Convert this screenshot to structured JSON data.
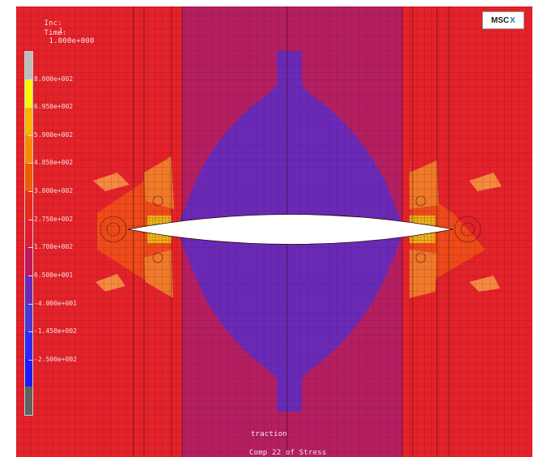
{
  "hud": {
    "inc_label": "Inc:",
    "inc_value": "1",
    "time_label": "Time:",
    "time_value": "1.000e+000"
  },
  "logo": {
    "text": "MSC",
    "mark": "X"
  },
  "legend": {
    "ticks": [
      "8.000e+002",
      "6.950e+002",
      "5.900e+002",
      "4.850e+002",
      "3.800e+002",
      "2.750e+002",
      "1.700e+002",
      "6.500e+001",
      "-4.000e+001",
      "-1.450e+002",
      "-2.500e+002"
    ],
    "colors": [
      "#bdbdbd",
      "#f8f800",
      "#f8b400",
      "#f88a00",
      "#f05a00",
      "#e82a18",
      "#e01e2e",
      "#c0185a",
      "#6a2ab8",
      "#4a38d8",
      "#2a2aff",
      "#1a1aff",
      "#606060"
    ]
  },
  "footer": {
    "job_name": "traction",
    "quantity": "Comp 22 of Stress"
  },
  "colors": {
    "background": "#e4222a",
    "band": "#b51f62",
    "plume": "#6a2ab8",
    "hole": "#ffffff",
    "mesh": "#4a0a10"
  }
}
